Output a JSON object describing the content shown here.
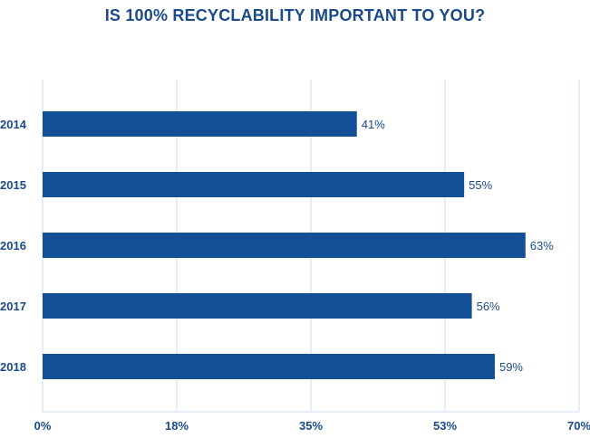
{
  "chart_data": {
    "type": "bar",
    "orientation": "horizontal",
    "title": "IS 100% RECYCLABILITY IMPORTANT TO YOU?",
    "xlabel": "",
    "ylabel": "",
    "categories": [
      "2014",
      "2015",
      "2016",
      "2017",
      "2018"
    ],
    "values": [
      41,
      55,
      63,
      56,
      59
    ],
    "value_labels": [
      "41%",
      "55%",
      "63%",
      "56%",
      "59%"
    ],
    "xlim": [
      0,
      70
    ],
    "x_tick_labels": [
      "0%",
      "18%",
      "35%",
      "53%",
      "70%"
    ],
    "grid": true,
    "legend": "none",
    "bar_color": "#134f97",
    "text_color": "#1a4a8a",
    "grid_color": "#cfdbe8"
  }
}
